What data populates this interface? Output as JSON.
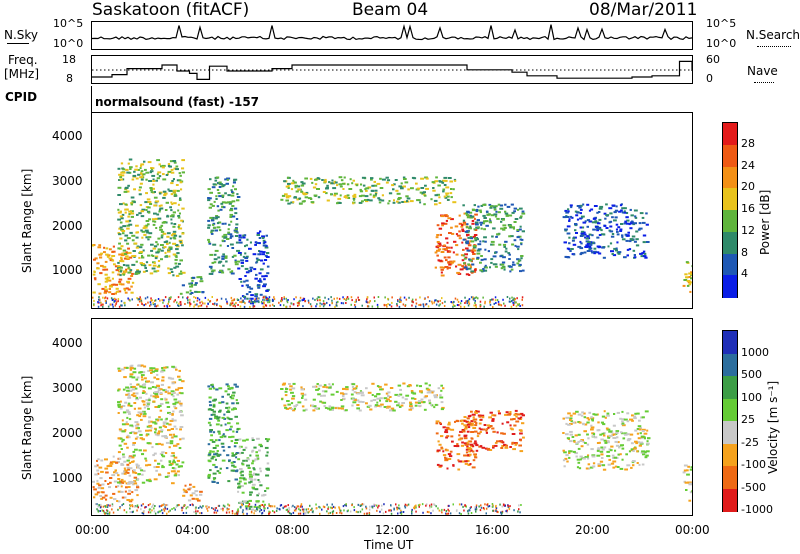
{
  "header": {
    "title_left": "Saskatoon (fitACF)",
    "title_center": "Beam 04",
    "title_right": "08/Mar/2011"
  },
  "top_panels": {
    "nsky_label": "N.Sky",
    "nsky_ticks": [
      "10^5",
      "10^0"
    ],
    "nsearch_label": "N.Search",
    "nsearch_ticks": [
      "10^5",
      "10^0"
    ],
    "freq_label": "Freq.",
    "freq_unit": "[MHz]",
    "freq_ticks": [
      "18",
      "8"
    ],
    "nave_label": "Nave",
    "nave_ticks": [
      "60",
      "0"
    ],
    "cpid_label": "CPID",
    "cpid_value": "normalsound (fast) -157"
  },
  "chart_data": [
    {
      "type": "heatmap",
      "panel": "power",
      "ylabel": "Slant Range [km]",
      "yticks": [
        "1000",
        "2000",
        "3000",
        "4000"
      ],
      "ylim": [
        180,
        4500
      ],
      "xlim": [
        0,
        24
      ],
      "colorbar": {
        "label": "Power [dB]",
        "ticks": [
          "4",
          "8",
          "12",
          "16",
          "20",
          "24",
          "28"
        ],
        "colors": [
          "#0a1ee6",
          "#1e58b4",
          "#2f8a6a",
          "#5fb53c",
          "#e8c31c",
          "#f39016",
          "#ef5a14",
          "#e31b1b"
        ]
      },
      "echo_regions": [
        {
          "t": [
            0.0,
            1.6
          ],
          "r": [
            500,
            1600
          ],
          "level": 5
        },
        {
          "t": [
            1.0,
            3.6
          ],
          "r": [
            900,
            3500
          ],
          "level": 3
        },
        {
          "t": [
            3.5,
            4.4
          ],
          "r": [
            500,
            900
          ],
          "level": 2
        },
        {
          "t": [
            4.6,
            5.8
          ],
          "r": [
            900,
            3100
          ],
          "level": 2
        },
        {
          "t": [
            5.8,
            7.0
          ],
          "r": [
            300,
            1900
          ],
          "level": 1
        },
        {
          "t": [
            7.5,
            14.5
          ],
          "r": [
            2500,
            3100
          ],
          "level": 3
        },
        {
          "t": [
            13.7,
            15.3
          ],
          "r": [
            900,
            2300
          ],
          "level": 6
        },
        {
          "t": [
            14.8,
            17.2
          ],
          "r": [
            1000,
            2500
          ],
          "level": 2
        },
        {
          "t": [
            18.8,
            22.2
          ],
          "r": [
            1300,
            2500
          ],
          "level": 1
        },
        {
          "t": [
            23.6,
            24.0
          ],
          "r": [
            500,
            1300
          ],
          "level": 4
        }
      ]
    },
    {
      "type": "heatmap",
      "panel": "velocity",
      "ylabel": "Slant Range [km]",
      "yticks": [
        "1000",
        "2000",
        "3000",
        "4000"
      ],
      "ylim": [
        180,
        4500
      ],
      "xlim": [
        0,
        24
      ],
      "xticks": [
        "00:00",
        "04:00",
        "08:00",
        "12:00",
        "16:00",
        "20:00",
        "00:00"
      ],
      "xlabel": "Time UT",
      "colorbar": {
        "label": "Velocity [m s⁻¹]",
        "ticks": [
          "1000",
          "500",
          "100",
          "25",
          "-25",
          "-100",
          "-500",
          "-1000"
        ],
        "colors": [
          "#1f2fb8",
          "#2c6e9e",
          "#3c9e46",
          "#65cc35",
          "#c8c8c8",
          "#f5a21d",
          "#ef6a14",
          "#e01b1b"
        ]
      },
      "echo_regions": [
        {
          "t": [
            0.0,
            1.8
          ],
          "r": [
            500,
            1500
          ],
          "level": 5
        },
        {
          "t": [
            1.0,
            3.6
          ],
          "r": [
            900,
            3500
          ],
          "level": 4
        },
        {
          "t": [
            3.5,
            4.4
          ],
          "r": [
            500,
            900
          ],
          "level": 5
        },
        {
          "t": [
            4.6,
            5.8
          ],
          "r": [
            900,
            3100
          ],
          "level": 2
        },
        {
          "t": [
            5.8,
            7.0
          ],
          "r": [
            300,
            1900
          ],
          "level": 3
        },
        {
          "t": [
            7.5,
            14.0
          ],
          "r": [
            2500,
            3100
          ],
          "level": 4
        },
        {
          "t": [
            13.7,
            15.3
          ],
          "r": [
            1200,
            2300
          ],
          "level": 6
        },
        {
          "t": [
            14.8,
            17.2
          ],
          "r": [
            1600,
            2500
          ],
          "level": 6
        },
        {
          "t": [
            18.8,
            22.2
          ],
          "r": [
            1200,
            2500
          ],
          "level": 4
        },
        {
          "t": [
            23.6,
            24.0
          ],
          "r": [
            500,
            1300
          ],
          "level": 4
        }
      ]
    }
  ]
}
